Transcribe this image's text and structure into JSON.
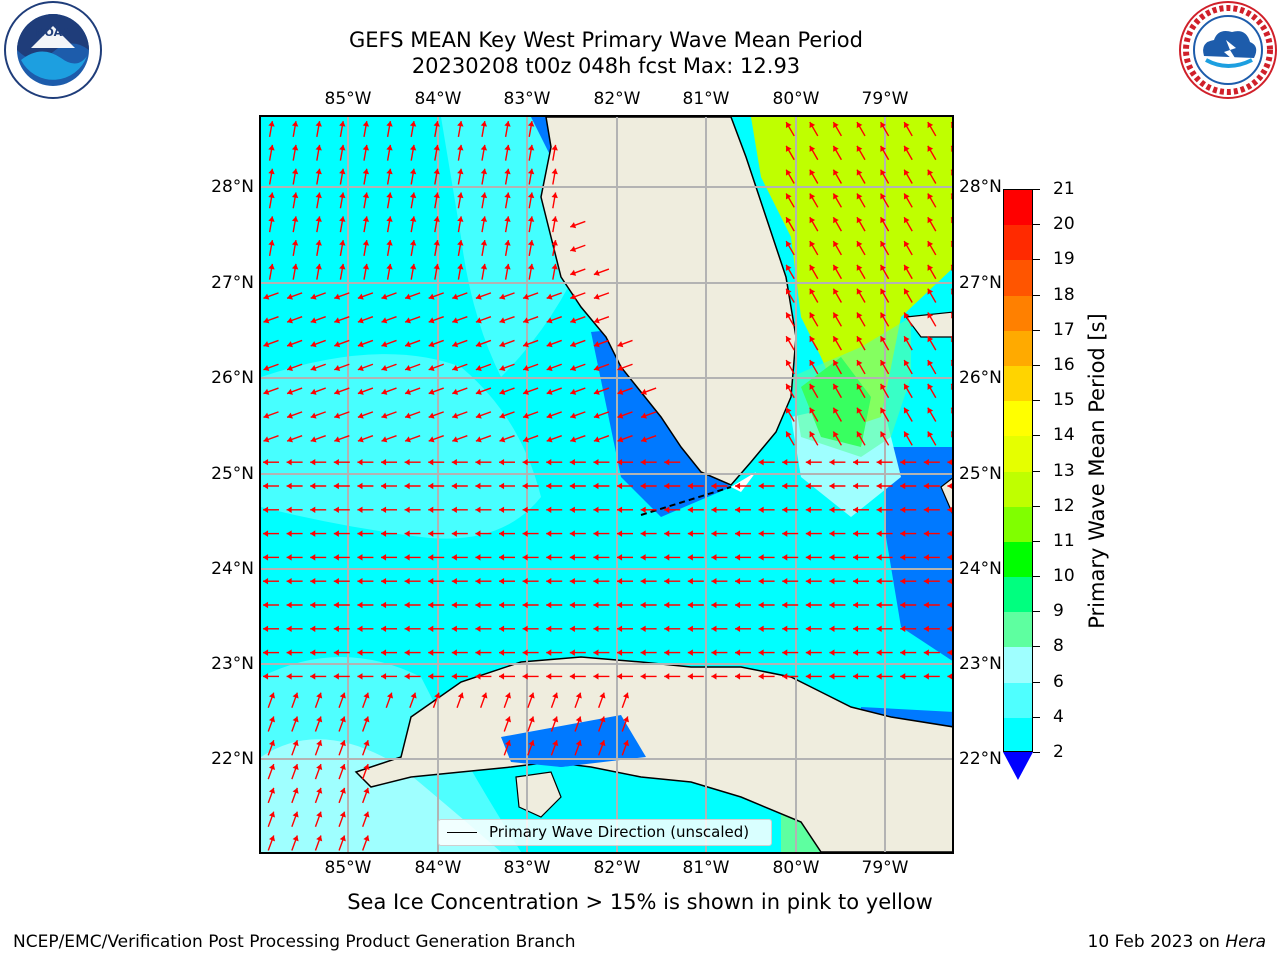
{
  "title": {
    "line1": "GEFS MEAN Key West Primary Wave Mean Period",
    "line2": "20230208 t00z 048h fcst   Max: 12.93"
  },
  "map": {
    "lon_labels": [
      "85°W",
      "84°W",
      "83°W",
      "82°W",
      "81°W",
      "80°W",
      "79°W"
    ],
    "lat_labels": [
      "28°N",
      "27°N",
      "26°N",
      "25°N",
      "24°N",
      "23°N",
      "22°N"
    ],
    "legend_text": "Primary Wave Direction (unscaled)",
    "vector_color": "#ff0000",
    "land_color": "#efedde"
  },
  "colorbar": {
    "title": "Primary Wave Mean Period [s]",
    "tick_labels": [
      "21",
      "20",
      "19",
      "18",
      "17",
      "16",
      "15",
      "14",
      "13",
      "12",
      "11",
      "10",
      "9",
      "8",
      "6",
      "4",
      "2"
    ],
    "colors": [
      "#ff0000",
      "#ff2a00",
      "#ff5500",
      "#ff8000",
      "#ffaa00",
      "#ffd400",
      "#ffff00",
      "#e5ff00",
      "#bfff00",
      "#80ff00",
      "#00ff00",
      "#00ff7f",
      "#5effa0",
      "#9fffff",
      "#4fffff",
      "#00ffff",
      "#0079ff",
      "#0000ff"
    ]
  },
  "caption": "Sea Ice Concentration > 15% is shown in pink to yellow",
  "footer": {
    "left": "NCEP/EMC/Verification Post Processing Product Generation Branch",
    "right_date": "10 Feb 2023 on ",
    "right_host": "Hera"
  },
  "logos": {
    "noaa_text": "NOAA",
    "nws_text": "NATIONAL WEATHER SERVICE"
  }
}
